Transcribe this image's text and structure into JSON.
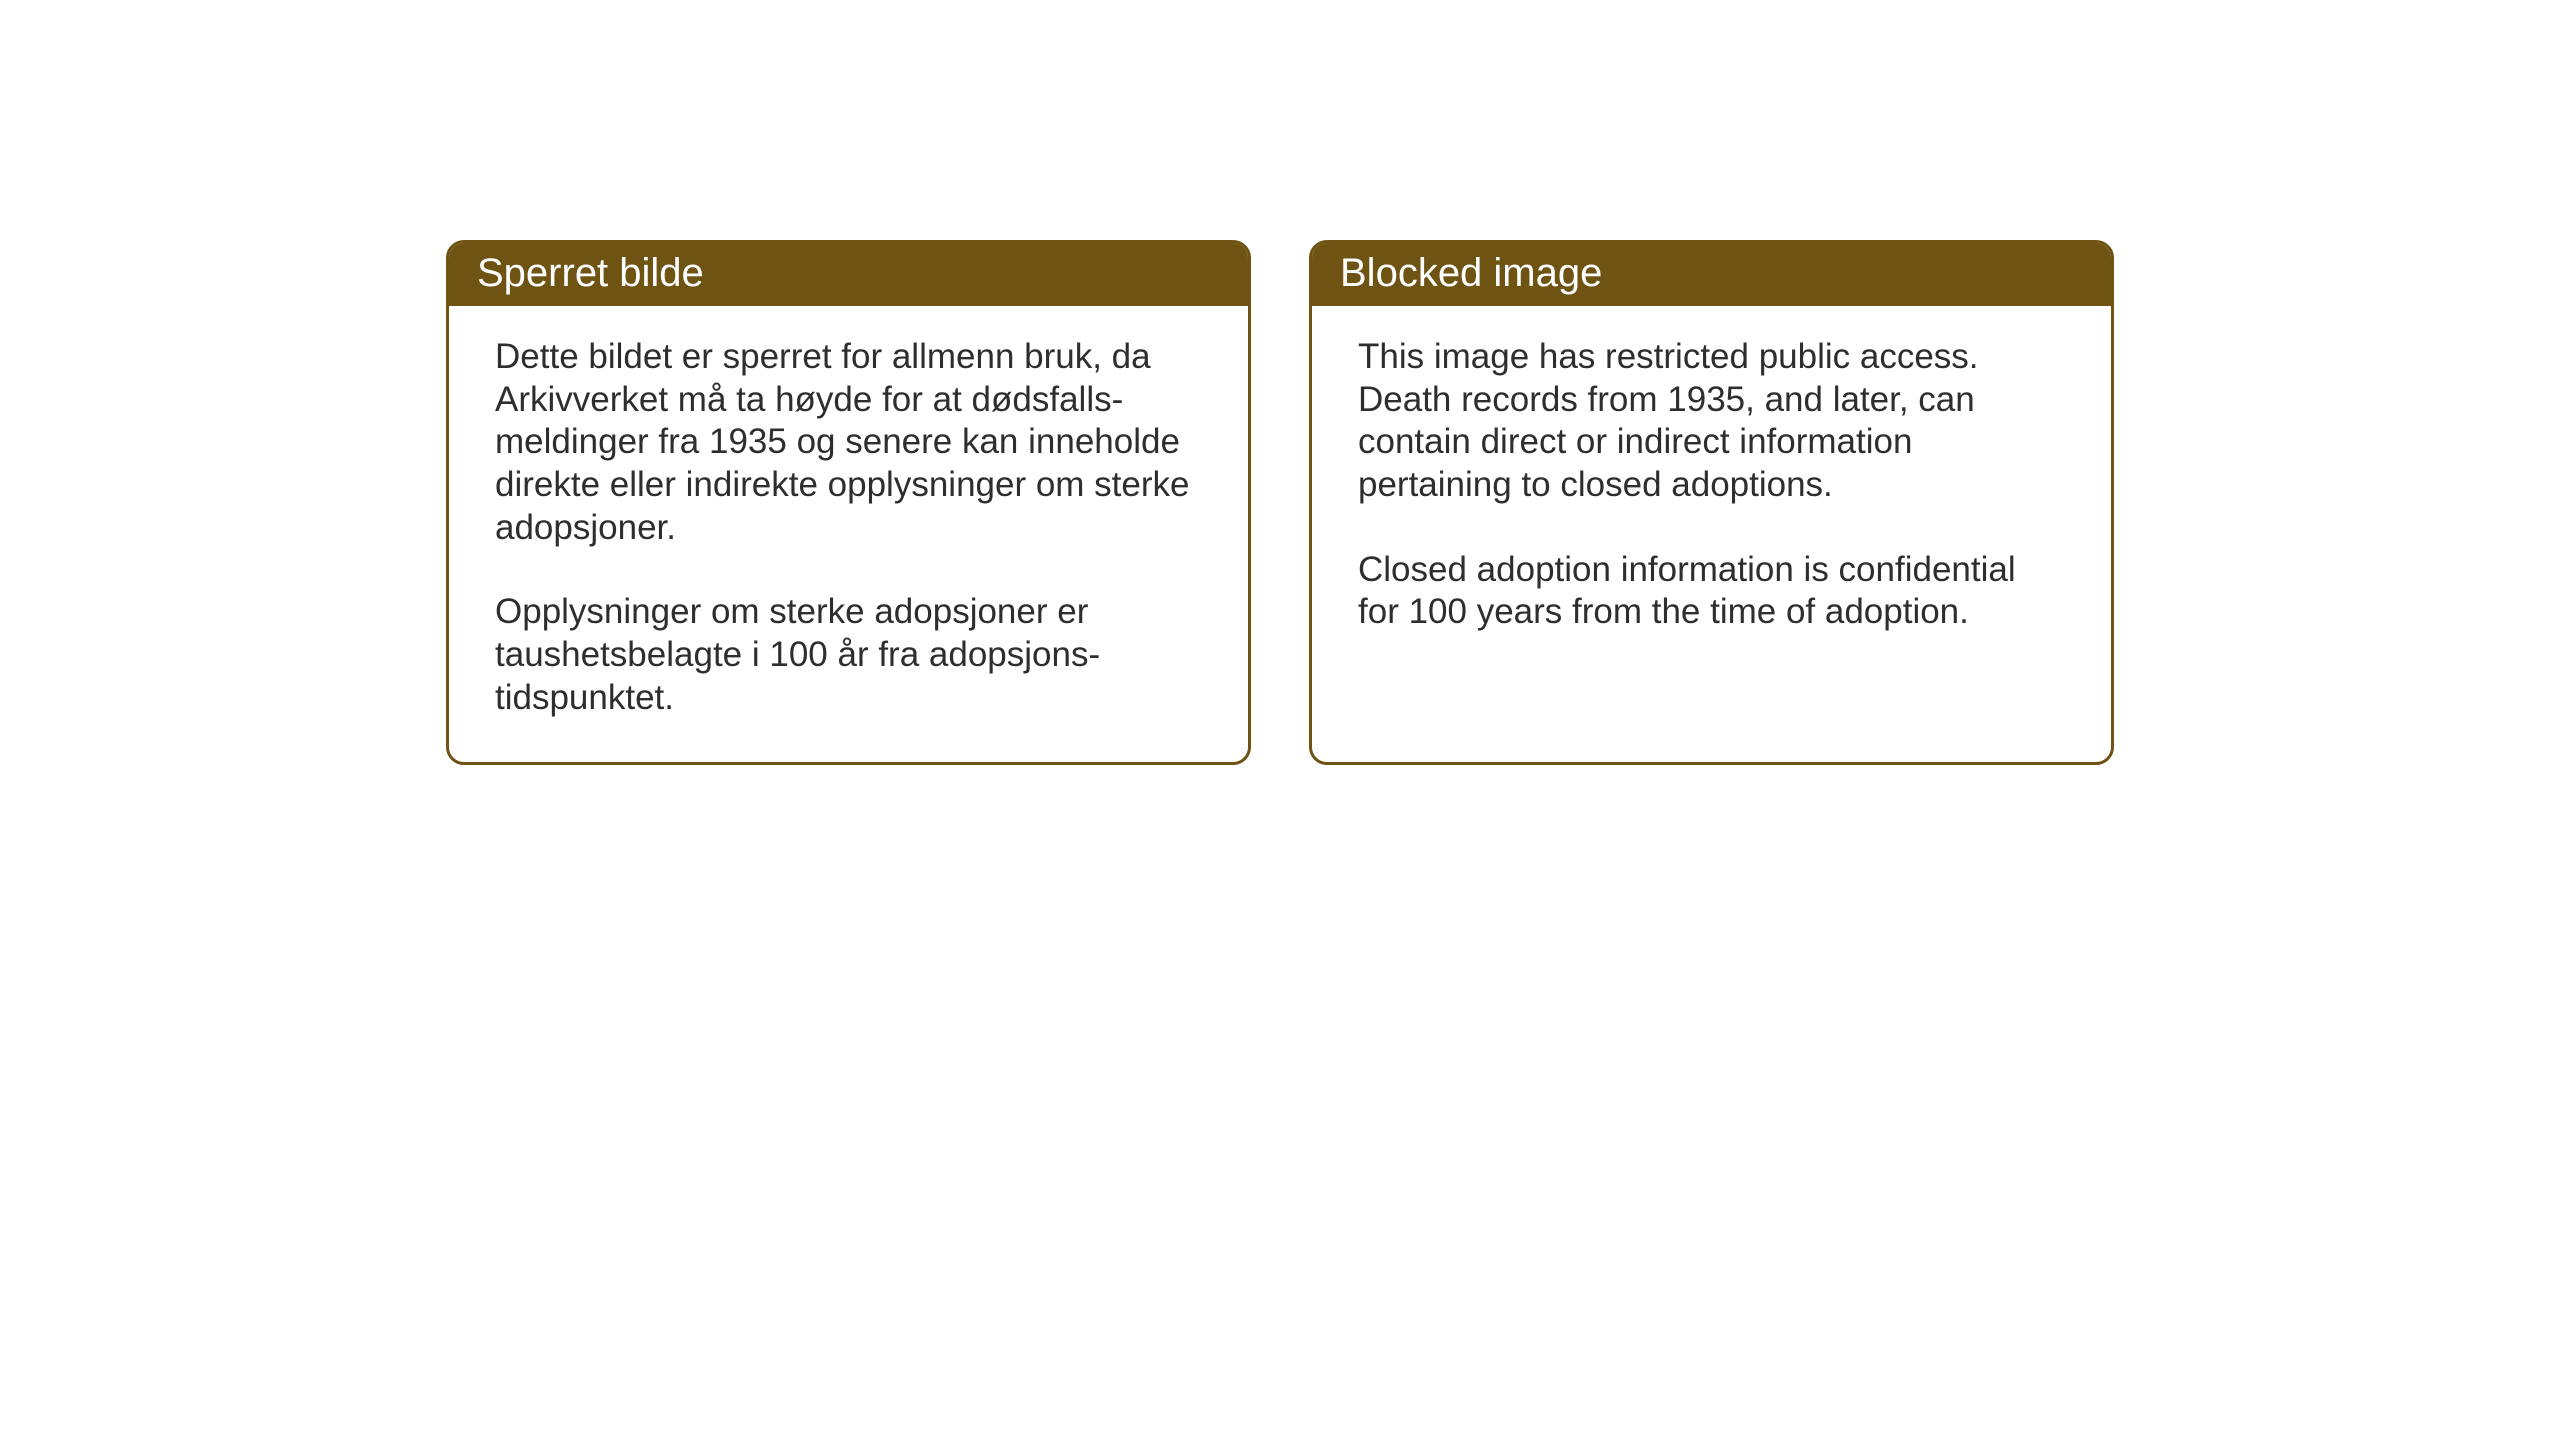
{
  "cards": {
    "norwegian": {
      "title": "Sperret bilde",
      "paragraph1": "Dette bildet er sperret for allmenn bruk, da Arkivverket må ta høyde for at dødsfalls-meldinger fra 1935 og senere kan inneholde direkte eller indirekte opplysninger om sterke adopsjoner.",
      "paragraph2": "Opplysninger om sterke adopsjoner er taushetsbelagte i 100 år fra adopsjons-tidspunktet."
    },
    "english": {
      "title": "Blocked image",
      "paragraph1": "This image has restricted public access. Death records from 1935, and later, can contain direct or indirect information pertaining to closed adoptions.",
      "paragraph2": "Closed adoption information is confidential for 100 years from the time of adoption."
    }
  },
  "styling": {
    "header_background_color": "#6e5313",
    "header_text_color": "#ffffff",
    "border_color": "#6e5313",
    "body_text_color": "#2e2e2e",
    "background_color": "#ffffff",
    "border_radius": 18,
    "border_width": 3,
    "header_fontsize": 40,
    "body_fontsize": 35
  }
}
